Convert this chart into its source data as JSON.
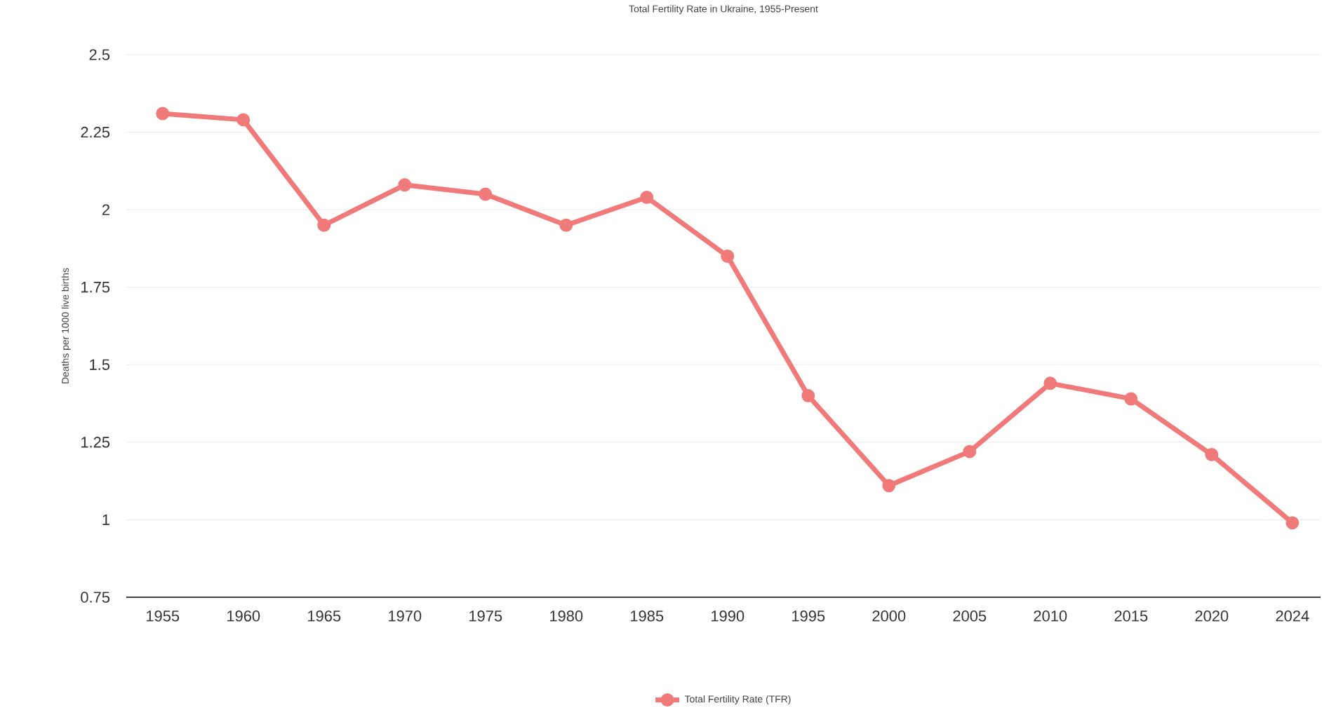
{
  "chart_data": {
    "type": "line",
    "title": "Total Fertility Rate in Ukraine, 1955-Present",
    "ylabel": "Deaths per 1000 live births",
    "categories": [
      "1955",
      "1960",
      "1965",
      "1970",
      "1975",
      "1980",
      "1985",
      "1990",
      "1995",
      "2000",
      "2005",
      "2010",
      "2015",
      "2020",
      "2024"
    ],
    "series": [
      {
        "name": "Total Fertility Rate (TFR)",
        "color": "#f07a7a",
        "values": [
          2.31,
          2.29,
          1.95,
          2.08,
          2.05,
          1.95,
          2.04,
          1.85,
          1.4,
          1.11,
          1.22,
          1.44,
          1.39,
          1.21,
          0.99
        ]
      }
    ],
    "ylim": [
      0.75,
      2.5
    ],
    "yticks": [
      0.75,
      1,
      1.25,
      1.5,
      1.75,
      2,
      2.25,
      2.5
    ],
    "grid": "y",
    "legend": "bottom",
    "marker": "circle",
    "line_style": "solid"
  }
}
